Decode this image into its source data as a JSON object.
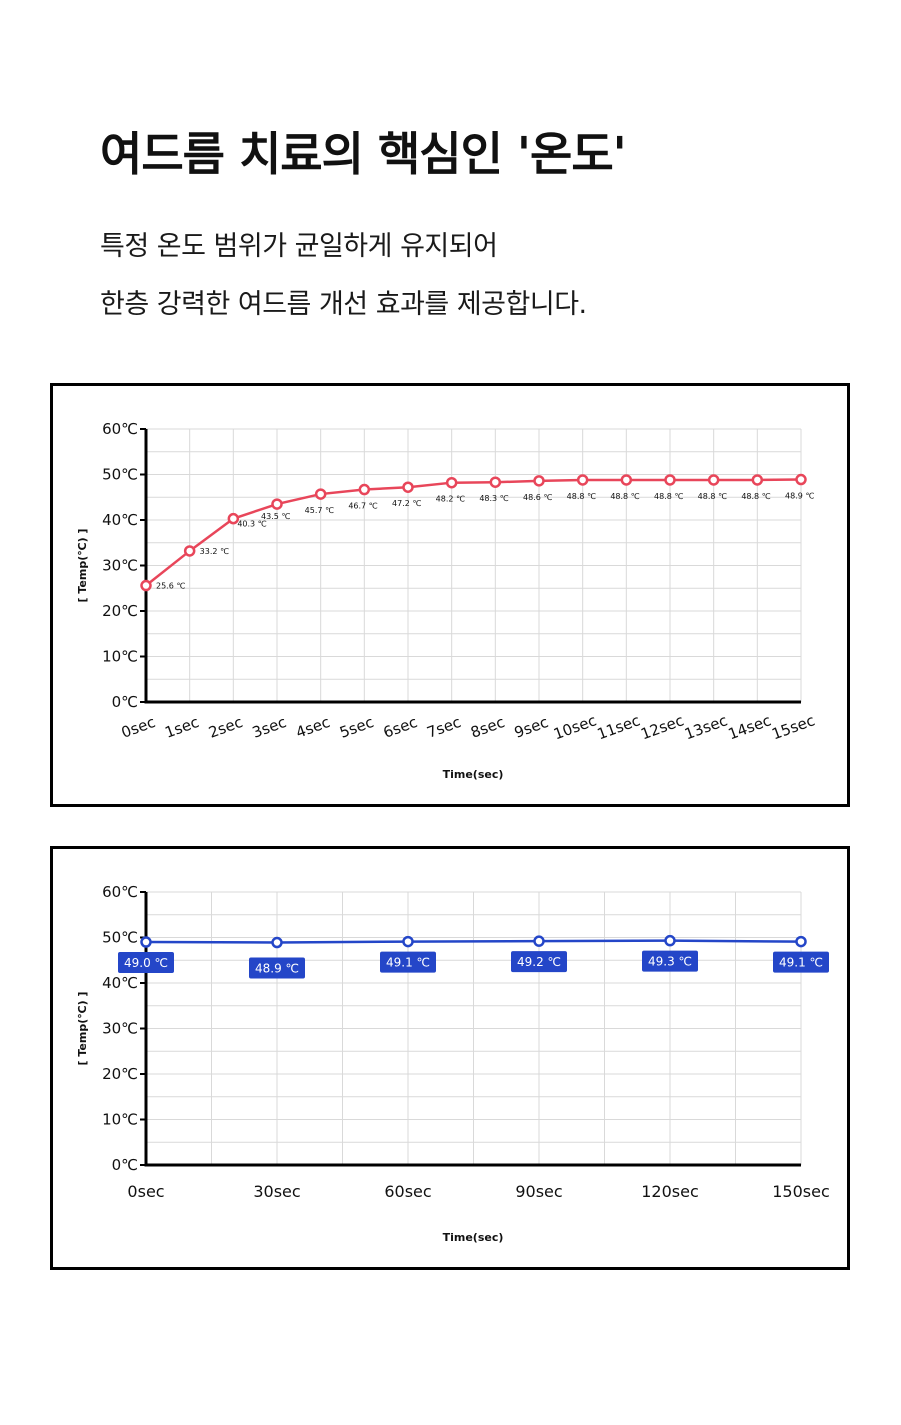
{
  "header": {
    "title": "여드름 치료의 핵심인 '온도'",
    "subtitle_line1": "특정 온도 범위가 균일하게 유지되어",
    "subtitle_line2": "한층 강력한 여드름 개선 효과를 제공합니다."
  },
  "colors": {
    "series1": "#e8465a",
    "series2": "#2446c8",
    "axis": "#000000",
    "grid": "#d9d9d9"
  },
  "chart_data": [
    {
      "type": "line",
      "x": [
        "0sec",
        "1sec",
        "2sec",
        "3sec",
        "4sec",
        "5sec",
        "6sec",
        "7sec",
        "8sec",
        "9sec",
        "10sec",
        "11sec",
        "12sec",
        "13sec",
        "14sec",
        "15sec"
      ],
      "values": [
        25.6,
        33.2,
        40.3,
        43.5,
        45.7,
        46.7,
        47.2,
        48.2,
        48.3,
        48.6,
        48.8,
        48.8,
        48.8,
        48.8,
        48.8,
        48.9
      ],
      "data_labels": [
        "25.6 ℃",
        "33.2 ℃",
        "40.3 ℃",
        "43.5 ℃",
        "45.7 ℃",
        "46.7 ℃",
        "47.2 ℃",
        "48.2 ℃",
        "48.3 ℃",
        "48.6 ℃",
        "48.8 ℃",
        "48.8 ℃",
        "48.8 ℃",
        "48.8 ℃",
        "48.8 ℃",
        "48.9 ℃"
      ],
      "yticks": [
        "0℃",
        "10℃",
        "20℃",
        "30℃",
        "40℃",
        "50℃",
        "60℃"
      ],
      "ylim": [
        0,
        60
      ],
      "xlabel": "Time(sec)",
      "ylabel": "[ Temp(℃) ]",
      "grid": true
    },
    {
      "type": "line",
      "x": [
        "0sec",
        "30sec",
        "60sec",
        "90sec",
        "120sec",
        "150sec"
      ],
      "values": [
        49.0,
        48.9,
        49.1,
        49.2,
        49.3,
        49.1
      ],
      "data_labels": [
        "49.0 ℃",
        "48.9 ℃",
        "49.1 ℃",
        "49.2 ℃",
        "49.3 ℃",
        "49.1 ℃"
      ],
      "yticks": [
        "0℃",
        "10℃",
        "20℃",
        "30℃",
        "40℃",
        "50℃",
        "60℃"
      ],
      "ylim": [
        0,
        60
      ],
      "xlabel": "Time(sec)",
      "ylabel": "[ Temp(℃) ]",
      "grid": true
    }
  ]
}
